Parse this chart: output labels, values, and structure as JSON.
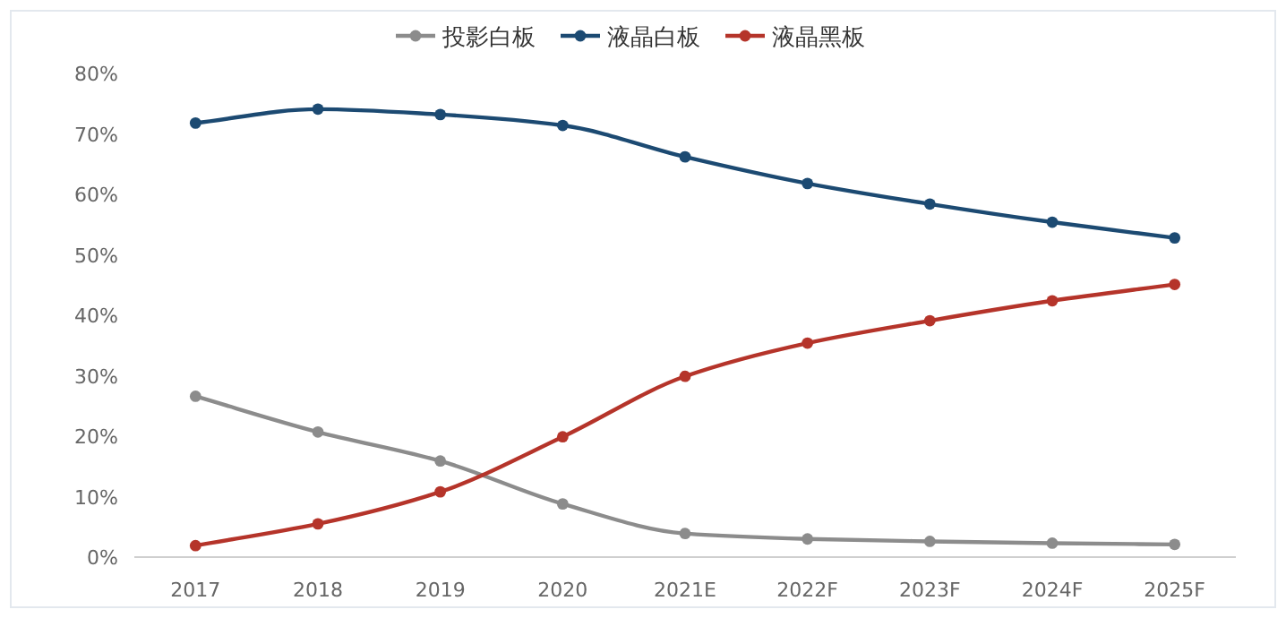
{
  "chart_data": {
    "type": "line",
    "categories": [
      "2017",
      "2018",
      "2019",
      "2020",
      "2021E",
      "2022F",
      "2023F",
      "2024F",
      "2025F"
    ],
    "series": [
      {
        "name": "投影白板",
        "color": "#8c8c8c",
        "values": [
          26.6,
          20.7,
          15.9,
          8.8,
          3.9,
          3.0,
          2.6,
          2.3,
          2.1
        ]
      },
      {
        "name": "液晶白板",
        "color": "#1c4a72",
        "values": [
          71.8,
          74.1,
          73.2,
          71.4,
          66.2,
          61.8,
          58.4,
          55.4,
          52.8
        ]
      },
      {
        "name": "液晶黑板",
        "color": "#b5342a",
        "values": [
          1.9,
          5.5,
          10.8,
          19.9,
          29.9,
          35.4,
          39.1,
          42.4,
          45.1
        ]
      }
    ],
    "ylim": [
      0,
      80
    ],
    "yticks": [
      {
        "value": 0,
        "label": "0%"
      },
      {
        "value": 10,
        "label": "10%"
      },
      {
        "value": 20,
        "label": "20%"
      },
      {
        "value": 30,
        "label": "30%"
      },
      {
        "value": 40,
        "label": "40%"
      },
      {
        "value": 50,
        "label": "50%"
      },
      {
        "value": 60,
        "label": "60%"
      },
      {
        "value": 70,
        "label": "70%"
      },
      {
        "value": 80,
        "label": "80%"
      }
    ],
    "grid": false,
    "legend": "top",
    "marker": "circle",
    "line_style": "solid"
  }
}
